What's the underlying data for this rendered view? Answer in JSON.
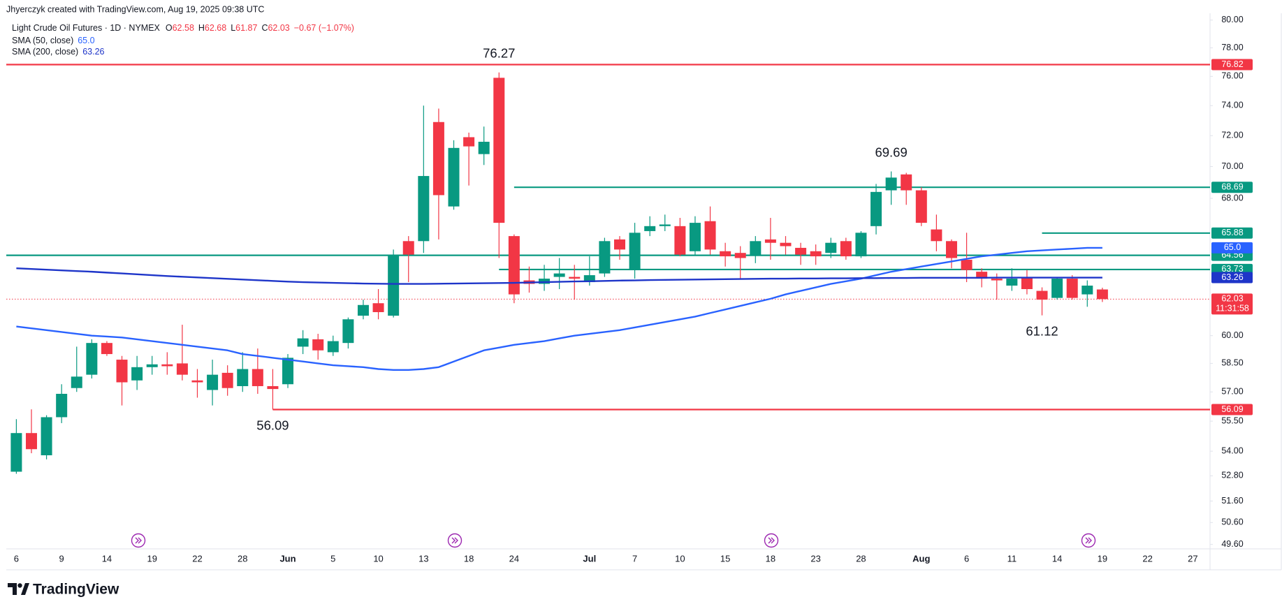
{
  "chart_data": {
    "type": "candlestick",
    "header": "Jhyerczyk created with TradingView.com, Aug 19, 2025 09:38 UTC",
    "title": "Light Crude Oil Futures · 1D · NYMEX",
    "ohlc_letters": [
      "O",
      "H",
      "L",
      "C"
    ],
    "change": "−0.67 (−1.07%)",
    "countdown": "11:31:58",
    "brand": "TradingView",
    "up_color": "#089981",
    "down_color": "#f23645",
    "yscale": "log",
    "grid": false,
    "price_line": true,
    "ylim": [
      49.4,
      80.5
    ],
    "yticks": [
      {
        "value": 80,
        "label": "80.00"
      },
      {
        "value": 78,
        "label": "78.00"
      },
      {
        "value": 76,
        "label": "76.00"
      },
      {
        "value": 74,
        "label": "74.00"
      },
      {
        "value": 72,
        "label": "72.00"
      },
      {
        "value": 70,
        "label": "70.00"
      },
      {
        "value": 68,
        "label": "68.00"
      },
      {
        "value": 60,
        "label": "60.00"
      },
      {
        "value": 58.5,
        "label": "58.50"
      },
      {
        "value": 57,
        "label": "57.00"
      },
      {
        "value": 55.5,
        "label": "55.50"
      },
      {
        "value": 54,
        "label": "54.00"
      },
      {
        "value": 52.8,
        "label": "52.80"
      },
      {
        "value": 51.6,
        "label": "51.60"
      },
      {
        "value": 50.6,
        "label": "50.60"
      },
      {
        "value": 49.6,
        "label": "49.60"
      }
    ],
    "categories": [
      "6",
      null,
      null,
      "9",
      null,
      null,
      "14",
      null,
      null,
      "19",
      null,
      null,
      "22",
      null,
      null,
      "28",
      null,
      null,
      "Jun",
      null,
      null,
      "5",
      null,
      null,
      "10",
      null,
      null,
      "13",
      null,
      null,
      "18",
      null,
      null,
      "24",
      null,
      null,
      null,
      null,
      "Jul",
      null,
      null,
      "7",
      null,
      null,
      "10",
      null,
      null,
      "15",
      null,
      null,
      "18",
      null,
      null,
      "23",
      null,
      null,
      "28",
      null,
      null,
      null,
      "Aug",
      null,
      null,
      "6",
      null,
      null,
      "11",
      null,
      null,
      "14",
      null,
      null,
      "19",
      null,
      null,
      "22",
      null,
      null,
      "27"
    ],
    "open": [
      53.0,
      54.9,
      53.8,
      55.7,
      57.2,
      57.9,
      59.6,
      58.7,
      57.6,
      58.3,
      58.45,
      58.5,
      57.6,
      57.1,
      58.0,
      57.3,
      58.2,
      57.3,
      57.4,
      59.4,
      59.8,
      59.1,
      59.6,
      61.1,
      61.8,
      61.1,
      65.4,
      65.4,
      72.9,
      67.5,
      71.9,
      70.8,
      75.9,
      65.7,
      63.1,
      62.9,
      63.3,
      63.3,
      63.0,
      63.5,
      65.5,
      63.7,
      66.0,
      66.3,
      66.3,
      64.8,
      66.6,
      64.8,
      64.7,
      64.6,
      65.5,
      65.3,
      65.0,
      64.8,
      64.7,
      65.4,
      64.5,
      66.3,
      68.5,
      69.5,
      68.5,
      66.1,
      65.4,
      64.3,
      63.6,
      63.2,
      62.8,
      63.3,
      62.5,
      62.1,
      63.2,
      62.3,
      62.58,
      null,
      null,
      null,
      null,
      null,
      null
    ],
    "high": [
      55.6,
      56.1,
      55.8,
      57.4,
      59.4,
      59.8,
      59.7,
      58.9,
      58.9,
      58.9,
      59.1,
      60.6,
      58.2,
      58.7,
      58.4,
      59.1,
      59.3,
      58.2,
      59.0,
      60.3,
      60.1,
      60.0,
      61.0,
      62.0,
      62.6,
      64.9,
      65.7,
      74.0,
      73.8,
      71.7,
      72.2,
      72.6,
      76.27,
      65.8,
      63.9,
      64.0,
      64.4,
      64.0,
      64.5,
      65.6,
      65.7,
      66.5,
      66.9,
      67.0,
      66.8,
      66.9,
      67.5,
      65.3,
      65.1,
      65.7,
      66.8,
      65.7,
      65.3,
      65.2,
      65.6,
      65.6,
      66.0,
      68.9,
      69.69,
      69.6,
      68.7,
      67.0,
      65.5,
      65.9,
      63.8,
      63.5,
      63.8,
      63.7,
      62.7,
      63.3,
      63.4,
      63.1,
      62.68,
      null,
      null,
      null,
      null,
      null,
      null
    ],
    "low": [
      52.9,
      53.9,
      53.6,
      55.4,
      57.0,
      57.7,
      58.9,
      56.3,
      57.1,
      57.9,
      57.9,
      57.6,
      56.7,
      56.3,
      56.8,
      57.0,
      56.9,
      56.09,
      57.2,
      59.0,
      58.7,
      58.9,
      59.3,
      60.9,
      60.9,
      61.0,
      63.0,
      64.7,
      65.5,
      67.3,
      68.8,
      70.1,
      64.4,
      61.8,
      62.4,
      62.5,
      62.6,
      62.0,
      62.8,
      63.3,
      64.3,
      63.2,
      65.7,
      66.0,
      64.5,
      64.6,
      64.6,
      63.9,
      63.2,
      64.1,
      64.3,
      64.6,
      64.0,
      64.0,
      64.4,
      64.3,
      64.4,
      65.8,
      67.6,
      67.6,
      66.3,
      64.8,
      63.8,
      63.0,
      62.7,
      62.0,
      62.5,
      62.3,
      61.12,
      62.0,
      62.0,
      61.6,
      61.87,
      null,
      null,
      null,
      null,
      null,
      null
    ],
    "close": [
      54.9,
      54.1,
      55.7,
      56.9,
      57.8,
      59.6,
      59.0,
      57.5,
      58.3,
      58.45,
      58.35,
      57.9,
      57.5,
      57.9,
      57.2,
      58.2,
      57.3,
      57.15,
      58.8,
      59.85,
      59.2,
      59.7,
      60.9,
      61.7,
      61.3,
      64.6,
      64.6,
      69.4,
      68.2,
      71.2,
      71.3,
      71.6,
      66.5,
      62.3,
      62.9,
      63.2,
      63.5,
      63.2,
      63.4,
      65.4,
      64.9,
      65.9,
      66.3,
      66.4,
      64.6,
      66.5,
      64.9,
      64.5,
      64.4,
      65.4,
      65.3,
      65.1,
      64.6,
      64.5,
      65.3,
      64.5,
      65.9,
      68.4,
      69.3,
      68.5,
      66.5,
      65.4,
      64.4,
      63.7,
      63.2,
      63.1,
      63.2,
      62.6,
      62.0,
      63.2,
      62.1,
      62.8,
      62.03,
      null,
      null,
      null,
      null,
      null,
      null
    ],
    "series": [
      {
        "name": "SMA (50, close)",
        "color": "#2962ff",
        "last": {
          "value": 65.0,
          "label": "65.0"
        },
        "values": [
          60.5,
          60.4,
          60.3,
          60.2,
          60.1,
          60.0,
          59.95,
          59.9,
          59.8,
          59.7,
          59.6,
          59.5,
          59.4,
          59.3,
          59.2,
          59.0,
          58.9,
          58.8,
          58.7,
          58.6,
          58.5,
          58.4,
          58.35,
          58.3,
          58.2,
          58.15,
          58.15,
          58.2,
          58.3,
          58.6,
          58.9,
          59.2,
          59.35,
          59.5,
          59.6,
          59.7,
          59.85,
          60.0,
          60.1,
          60.2,
          60.3,
          60.45,
          60.6,
          60.75,
          60.9,
          61.05,
          61.25,
          61.45,
          61.65,
          61.85,
          62.05,
          62.3,
          62.5,
          62.7,
          62.9,
          63.05,
          63.2,
          63.4,
          63.6,
          63.75,
          63.9,
          64.05,
          64.2,
          64.35,
          64.5,
          64.6,
          64.7,
          64.8,
          64.85,
          64.9,
          64.95,
          65.0,
          65.0,
          null,
          null,
          null,
          null,
          null,
          null
        ]
      },
      {
        "name": "SMA (200, close)",
        "color": "#1e35c9",
        "last": 63.26,
        "values": [
          63.8,
          63.76,
          63.72,
          63.68,
          63.64,
          63.6,
          63.55,
          63.5,
          63.45,
          63.4,
          63.35,
          63.31,
          63.27,
          63.23,
          63.19,
          63.15,
          63.11,
          63.07,
          63.03,
          63.0,
          62.98,
          62.96,
          62.94,
          62.92,
          62.91,
          62.9,
          62.9,
          62.9,
          62.91,
          62.92,
          62.93,
          62.94,
          62.95,
          62.96,
          62.98,
          63.0,
          63.02,
          63.04,
          63.05,
          63.07,
          63.09,
          63.1,
          63.12,
          63.13,
          63.14,
          63.15,
          63.16,
          63.17,
          63.18,
          63.19,
          63.2,
          63.2,
          63.21,
          63.21,
          63.22,
          63.22,
          63.23,
          63.23,
          63.24,
          63.24,
          63.25,
          63.25,
          63.25,
          63.25,
          63.25,
          63.26,
          63.26,
          63.26,
          63.26,
          63.26,
          63.26,
          63.26,
          63.26,
          null,
          null,
          null,
          null,
          null,
          null
        ]
      }
    ],
    "levels": [
      {
        "value": 76.82,
        "color": "#f23645"
      },
      {
        "value": 68.69,
        "color": "#089981",
        "start": 33
      },
      {
        "value": 65.88,
        "color": "#089981",
        "start": 68
      },
      {
        "value": 64.56,
        "color": "#089981"
      },
      {
        "value": 63.73,
        "color": "#089981",
        "start": 32
      },
      {
        "value": 56.09,
        "color": "#f23645",
        "start": 17
      }
    ],
    "annotations": [
      {
        "value": 76.27,
        "index": 32,
        "place": "above"
      },
      {
        "value": 69.69,
        "index": 58,
        "place": "above"
      },
      {
        "value": 61.12,
        "index": 68,
        "place": "below"
      },
      {
        "value": 56.09,
        "index": 17,
        "place": "below"
      }
    ]
  }
}
